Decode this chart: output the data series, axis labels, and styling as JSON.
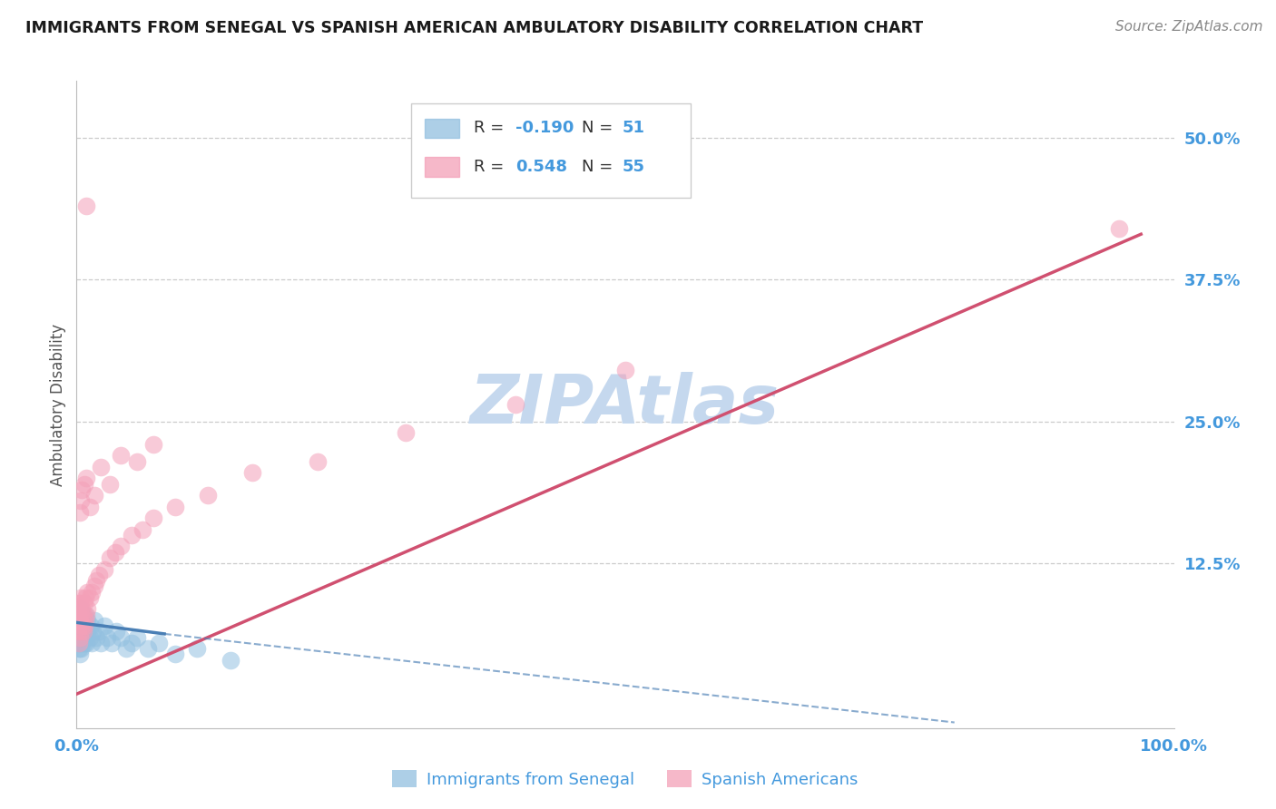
{
  "title": "IMMIGRANTS FROM SENEGAL VS SPANISH AMERICAN AMBULATORY DISABILITY CORRELATION CHART",
  "source_text": "Source: ZipAtlas.com",
  "ylabel": "Ambulatory Disability",
  "watermark": "ZIPAtlas",
  "xlim": [
    0.0,
    1.0
  ],
  "ylim": [
    -0.02,
    0.55
  ],
  "color_blue": "#92C0E0",
  "color_pink": "#F4A0B8",
  "color_blue_line": "#4A7FB5",
  "color_pink_line": "#D05070",
  "color_grid": "#CCCCCC",
  "color_title": "#1A1A1A",
  "color_axis": "#4499DD",
  "color_watermark": "#C5D8EE",
  "senegal_x": [
    0.001,
    0.001,
    0.001,
    0.002,
    0.002,
    0.002,
    0.002,
    0.003,
    0.003,
    0.003,
    0.003,
    0.003,
    0.004,
    0.004,
    0.004,
    0.004,
    0.005,
    0.005,
    0.005,
    0.006,
    0.006,
    0.006,
    0.007,
    0.007,
    0.008,
    0.008,
    0.009,
    0.009,
    0.01,
    0.01,
    0.012,
    0.013,
    0.014,
    0.015,
    0.016,
    0.018,
    0.02,
    0.022,
    0.025,
    0.028,
    0.032,
    0.036,
    0.04,
    0.045,
    0.05,
    0.055,
    0.065,
    0.075,
    0.09,
    0.11,
    0.14
  ],
  "senegal_y": [
    0.055,
    0.065,
    0.075,
    0.05,
    0.06,
    0.07,
    0.08,
    0.045,
    0.055,
    0.065,
    0.075,
    0.085,
    0.05,
    0.06,
    0.07,
    0.08,
    0.055,
    0.065,
    0.075,
    0.06,
    0.07,
    0.08,
    0.055,
    0.075,
    0.06,
    0.08,
    0.055,
    0.07,
    0.065,
    0.075,
    0.06,
    0.07,
    0.055,
    0.065,
    0.075,
    0.06,
    0.065,
    0.055,
    0.07,
    0.06,
    0.055,
    0.065,
    0.06,
    0.05,
    0.055,
    0.06,
    0.05,
    0.055,
    0.045,
    0.05,
    0.04
  ],
  "spanish_x": [
    0.001,
    0.001,
    0.002,
    0.002,
    0.002,
    0.003,
    0.003,
    0.003,
    0.004,
    0.004,
    0.004,
    0.005,
    0.005,
    0.006,
    0.006,
    0.007,
    0.007,
    0.008,
    0.008,
    0.009,
    0.01,
    0.01,
    0.012,
    0.014,
    0.016,
    0.018,
    0.02,
    0.025,
    0.03,
    0.035,
    0.04,
    0.05,
    0.06,
    0.07,
    0.09,
    0.12,
    0.16,
    0.22,
    0.3,
    0.4,
    0.5,
    0.003,
    0.004,
    0.005,
    0.007,
    0.009,
    0.012,
    0.016,
    0.022,
    0.03,
    0.04,
    0.055,
    0.07,
    0.009,
    0.95
  ],
  "spanish_y": [
    0.065,
    0.08,
    0.055,
    0.075,
    0.09,
    0.06,
    0.075,
    0.09,
    0.065,
    0.08,
    0.095,
    0.07,
    0.085,
    0.065,
    0.08,
    0.07,
    0.09,
    0.075,
    0.095,
    0.08,
    0.085,
    0.1,
    0.095,
    0.1,
    0.105,
    0.11,
    0.115,
    0.12,
    0.13,
    0.135,
    0.14,
    0.15,
    0.155,
    0.165,
    0.175,
    0.185,
    0.205,
    0.215,
    0.24,
    0.265,
    0.295,
    0.17,
    0.18,
    0.19,
    0.195,
    0.2,
    0.175,
    0.185,
    0.21,
    0.195,
    0.22,
    0.215,
    0.23,
    0.44,
    0.42
  ],
  "pink_line_x0": 0.0,
  "pink_line_y0": 0.01,
  "pink_line_x1": 0.97,
  "pink_line_y1": 0.415,
  "blue_line_solid_x0": 0.0,
  "blue_line_solid_y0": 0.073,
  "blue_line_solid_x1": 0.08,
  "blue_line_solid_y1": 0.063,
  "blue_line_dash_x0": 0.08,
  "blue_line_dash_y0": 0.063,
  "blue_line_dash_x1": 0.8,
  "blue_line_dash_y1": -0.015
}
